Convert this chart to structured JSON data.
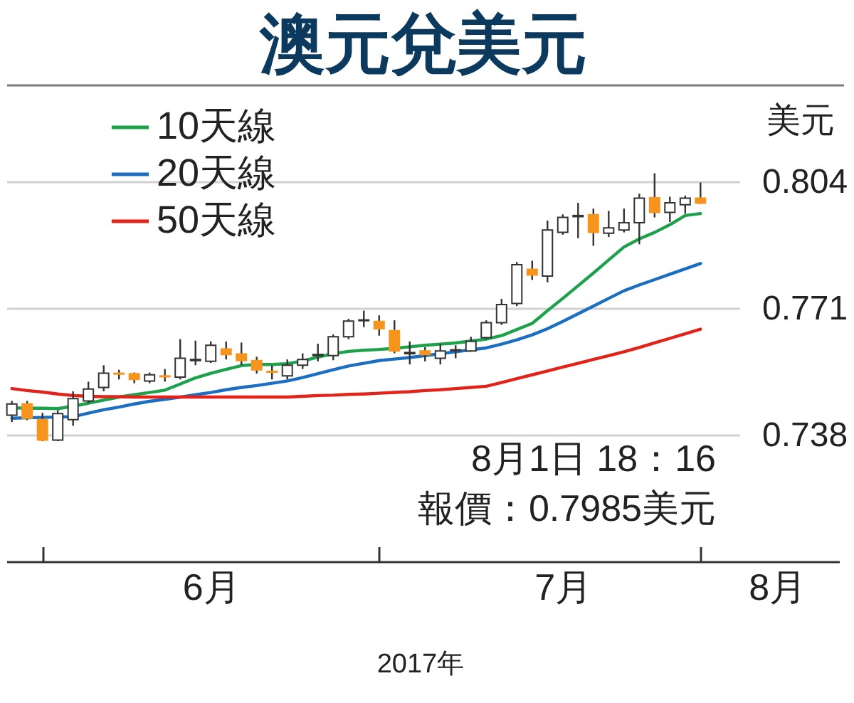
{
  "chart_data": {
    "type": "candlestick",
    "title": "澳元兌美元",
    "xlabel": "2017年",
    "ylabel": "美元",
    "categories": [
      null,
      null,
      null,
      null,
      null,
      null,
      null,
      null,
      null,
      null,
      null,
      null,
      null,
      "6月",
      null,
      null,
      null,
      null,
      null,
      null,
      null,
      null,
      null,
      null,
      null,
      null,
      null,
      null,
      null,
      null,
      null,
      null,
      null,
      null,
      null,
      null,
      "7月",
      null,
      null,
      null,
      null,
      null,
      null,
      null,
      null,
      null,
      null,
      null,
      null,
      null,
      "8月"
    ],
    "ohlc": [
      [
        0.7433,
        0.747,
        0.7415,
        0.7462
      ],
      [
        0.7462,
        0.747,
        0.742,
        0.7425
      ],
      [
        0.7421,
        0.7439,
        0.7365,
        0.7368
      ],
      [
        0.7368,
        0.7446,
        0.7365,
        0.7437
      ],
      [
        0.7421,
        0.7495,
        0.7405,
        0.7476
      ],
      [
        0.747,
        0.752,
        0.7464,
        0.7501
      ],
      [
        0.7505,
        0.7563,
        0.7495,
        0.7542
      ],
      [
        0.7542,
        0.7551,
        0.7526,
        0.754
      ],
      [
        0.7541,
        0.7544,
        0.7516,
        0.7526
      ],
      [
        0.7522,
        0.7544,
        0.7516,
        0.7538
      ],
      [
        0.7535,
        0.7553,
        0.752,
        0.7533
      ],
      [
        0.7532,
        0.7631,
        0.7526,
        0.7581
      ],
      [
        0.7575,
        0.7627,
        0.7563,
        0.7578
      ],
      [
        0.7573,
        0.7625,
        0.7569,
        0.7615
      ],
      [
        0.7605,
        0.7625,
        0.7578,
        0.7591
      ],
      [
        0.7592,
        0.7622,
        0.7563,
        0.7575
      ],
      [
        0.7575,
        0.7585,
        0.7541,
        0.7551
      ],
      [
        0.7547,
        0.7562,
        0.7526,
        0.7545
      ],
      [
        0.7535,
        0.7578,
        0.7526,
        0.7563
      ],
      [
        0.7563,
        0.7594,
        0.7553,
        0.7578
      ],
      [
        0.7588,
        0.7619,
        0.7573,
        0.7591
      ],
      [
        0.7588,
        0.7643,
        0.7576,
        0.7637
      ],
      [
        0.7637,
        0.7684,
        0.7631,
        0.7678
      ],
      [
        0.7679,
        0.7705,
        0.7662,
        0.7681
      ],
      [
        0.7677,
        0.7693,
        0.764,
        0.7658
      ],
      [
        0.7653,
        0.768,
        0.7594,
        0.76
      ],
      [
        0.7593,
        0.7625,
        0.7565,
        0.7596
      ],
      [
        0.76,
        0.761,
        0.7573,
        0.7591
      ],
      [
        0.7581,
        0.7619,
        0.7565,
        0.76
      ],
      [
        0.7601,
        0.7615,
        0.7581,
        0.7603
      ],
      [
        0.76,
        0.7637,
        0.7598,
        0.7625
      ],
      [
        0.7635,
        0.768,
        0.7631,
        0.7674
      ],
      [
        0.7674,
        0.7736,
        0.7668,
        0.7721
      ],
      [
        0.7724,
        0.7832,
        0.7717,
        0.7825
      ],
      [
        0.7813,
        0.7835,
        0.7785,
        0.7798
      ],
      [
        0.7795,
        0.794,
        0.7779,
        0.7915
      ],
      [
        0.7909,
        0.7956,
        0.7903,
        0.7948
      ],
      [
        0.795,
        0.7986,
        0.7894,
        0.7953
      ],
      [
        0.7955,
        0.7971,
        0.7874,
        0.7909
      ],
      [
        0.7907,
        0.7965,
        0.7897,
        0.7921
      ],
      [
        0.7915,
        0.7971,
        0.7909,
        0.7934
      ],
      [
        0.7934,
        0.801,
        0.7878,
        0.7998
      ],
      [
        0.7999,
        0.8063,
        0.7948,
        0.7961
      ],
      [
        0.7961,
        0.8002,
        0.7936,
        0.7986
      ],
      [
        0.7981,
        0.8005,
        0.7958,
        0.7998
      ],
      [
        0.7998,
        0.8039,
        0.7983,
        0.7985
      ],
      null,
      null,
      null,
      null,
      null
    ],
    "colors": [
      "#ffffff",
      "#f7941d",
      "#f7941d",
      "#ffffff",
      "#ffffff",
      "#ffffff",
      "#ffffff",
      "#f7941d",
      "#f7941d",
      "#ffffff",
      "#f7941d",
      "#ffffff",
      "#ffffff",
      "#ffffff",
      "#f7941d",
      "#f7941d",
      "#f7941d",
      "#f7941d",
      "#ffffff",
      "#ffffff",
      "#ffffff",
      "#ffffff",
      "#ffffff",
      "#ffffff",
      "#f7941d",
      "#f7941d",
      "#ffffff",
      "#f7941d",
      "#ffffff",
      "#ffffff",
      "#ffffff",
      "#ffffff",
      "#ffffff",
      "#ffffff",
      "#f7941d",
      "#ffffff",
      "#ffffff",
      "#ffffff",
      "#f7941d",
      "#ffffff",
      "#ffffff",
      "#ffffff",
      "#f7941d",
      "#ffffff",
      "#ffffff",
      "#f7941d",
      null,
      null,
      null,
      null,
      null
    ],
    "series": [
      {
        "name": "10天線",
        "type": "line",
        "color": "#1ea14b",
        "values": [
          0.7452,
          0.7451,
          0.7451,
          0.745,
          0.7456,
          0.7464,
          0.7472,
          0.748,
          0.7486,
          0.7492,
          0.7498,
          0.7514,
          0.753,
          0.7542,
          0.7552,
          0.7562,
          0.7565,
          0.7565,
          0.7567,
          0.7574,
          0.7584,
          0.7593,
          0.7599,
          0.7602,
          0.7604,
          0.7607,
          0.7611,
          0.7615,
          0.7618,
          0.7621,
          0.7626,
          0.7631,
          0.764,
          0.7656,
          0.7672,
          0.7705,
          0.7737,
          0.777,
          0.7803,
          0.7837,
          0.7871,
          0.7892,
          0.7909,
          0.7929,
          0.7953,
          0.7958,
          null,
          null,
          null,
          null,
          null
        ]
      },
      {
        "name": "20天線",
        "type": "line",
        "color": "#1b6ec2",
        "values": [
          0.7425,
          0.7426,
          0.7427,
          0.7428,
          0.7429,
          0.7438,
          0.7447,
          0.7454,
          0.7462,
          0.7469,
          0.7474,
          0.748,
          0.7486,
          0.7492,
          0.7499,
          0.7505,
          0.751,
          0.7516,
          0.7522,
          0.7531,
          0.7541,
          0.7551,
          0.7561,
          0.7568,
          0.7575,
          0.7579,
          0.7583,
          0.7588,
          0.7593,
          0.7598,
          0.7603,
          0.7608,
          0.7618,
          0.7629,
          0.7642,
          0.7658,
          0.7677,
          0.7697,
          0.7717,
          0.7737,
          0.7757,
          0.7772,
          0.7786,
          0.78,
          0.7814,
          0.7828,
          null,
          null,
          null,
          null,
          null
        ]
      },
      {
        "name": "50天線",
        "type": "line",
        "color": "#e2231a",
        "values": [
          0.7502,
          0.7497,
          0.7493,
          0.7488,
          0.7484,
          0.7482,
          0.7481,
          0.7481,
          0.748,
          0.748,
          0.748,
          0.748,
          0.748,
          0.748,
          0.748,
          0.748,
          0.748,
          0.748,
          0.748,
          0.7482,
          0.7484,
          0.7485,
          0.7487,
          0.7488,
          0.749,
          0.7492,
          0.7494,
          0.7497,
          0.7499,
          0.7502,
          0.7505,
          0.7508,
          0.7518,
          0.7528,
          0.7538,
          0.7548,
          0.7558,
          0.7568,
          0.7578,
          0.7588,
          0.7598,
          0.7609,
          0.7621,
          0.7633,
          0.7645,
          0.7657,
          null,
          null,
          null,
          null,
          null
        ]
      }
    ],
    "ylim": [
      0.705,
      0.8292
    ],
    "yticks": [
      0.738,
      0.771,
      0.804
    ],
    "grid": "y",
    "legend": "top left",
    "annotations": [
      "8月1日 18：16",
      "報價：0.7985美元"
    ]
  }
}
